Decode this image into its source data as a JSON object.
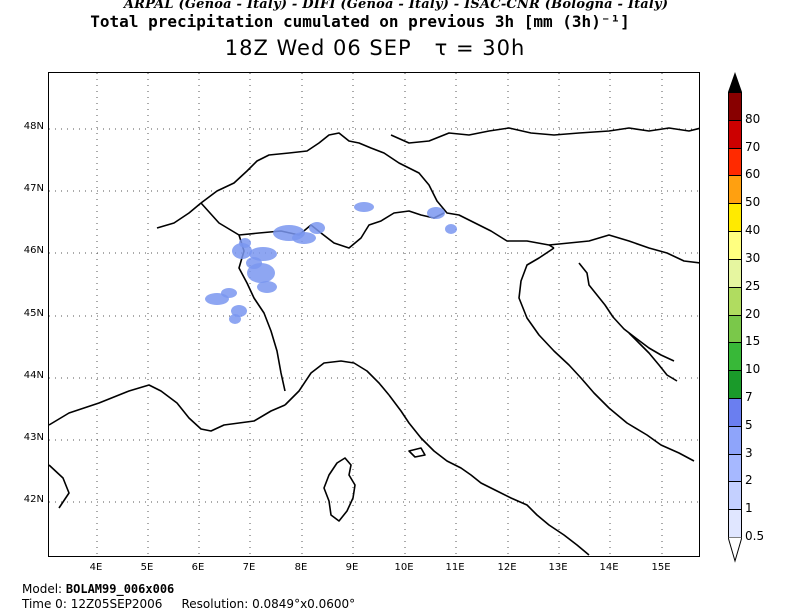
{
  "header": {
    "credits": "ARPAL (Genoa - Italy)  -  DIFI (Genoa - Italy)  -  ISAC-CNR (Bologna - Italy)",
    "title": "Total precipitation cumulated on previous 3h [mm (3h)⁻¹]",
    "valid_time": "18Z Wed 06 SEP",
    "tau": "τ = 30h"
  },
  "map": {
    "lat_labels": [
      "48N",
      "47N",
      "46N",
      "45N",
      "44N",
      "43N",
      "42N"
    ],
    "lon_labels": [
      "4E",
      "5E",
      "6E",
      "7E",
      "8E",
      "9E",
      "10E",
      "11E",
      "12E",
      "13E",
      "14E",
      "15E"
    ],
    "precip_color": "#7a96f0"
  },
  "colorbar": {
    "levels": [
      "0.5",
      "1",
      "2",
      "3",
      "5",
      "7",
      "10",
      "15",
      "20",
      "25",
      "30",
      "40",
      "50",
      "60",
      "70",
      "80"
    ],
    "colors": [
      "#e0e6ff",
      "#c4d0ff",
      "#a6b8ff",
      "#8ea4fa",
      "#6a7ef0",
      "#1a9a2a",
      "#38b838",
      "#7ac84a",
      "#b0dc60",
      "#e6f6a0",
      "#ffff80",
      "#ffea00",
      "#ffa010",
      "#ff2a00",
      "#cc0000",
      "#880000"
    ],
    "top_color": "#000000"
  },
  "footer": {
    "model_label": "Model:",
    "model_value": "BOLAM99_006x006",
    "time0_label": "Time 0:",
    "time0_value": "12Z05SEP2006",
    "resolution_label": "Resolution:",
    "resolution_value": "0.0849°x0.0600°"
  }
}
